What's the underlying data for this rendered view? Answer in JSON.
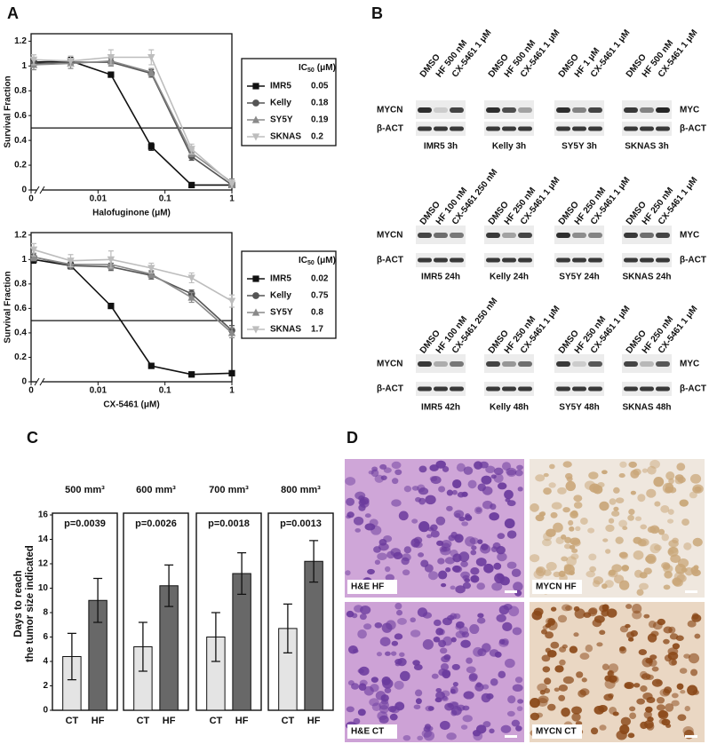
{
  "panel_labels": [
    "A",
    "B",
    "C",
    "D"
  ],
  "chart_data": [
    {
      "type": "line",
      "xlabel": "Halofuginone (μM)",
      "ylabel": "Survival Fraction",
      "x": [
        0,
        0.0039,
        0.0156,
        0.0625,
        0.25,
        1
      ],
      "xscale": "log",
      "axis_break": true,
      "xlim": [
        0.001,
        1
      ],
      "xticks": [
        0,
        0.01,
        0.1,
        1
      ],
      "ylim": [
        0,
        1.26
      ],
      "yticks": [
        0,
        0.2,
        0.4,
        0.6,
        0.8,
        1,
        1.2
      ],
      "hline": 0.5,
      "legend_title": "IC",
      "legend_title_sub": "50",
      "legend_title_unit": "(μM)",
      "legend_position": "right",
      "series": [
        {
          "name": "IMR5",
          "color": "#111111",
          "marker": "square",
          "values": [
            1.03,
            1.04,
            0.93,
            0.35,
            0.04,
            0.04
          ],
          "errors": [
            0.03,
            0.03,
            0.02,
            0.03,
            0.02,
            0.02
          ],
          "ic50": 0.05
        },
        {
          "name": "Kelly",
          "color": "#555555",
          "marker": "circle",
          "values": [
            1.02,
            1.03,
            1.03,
            0.94,
            0.27,
            0.04
          ],
          "errors": [
            0.03,
            0.03,
            0.03,
            0.03,
            0.03,
            0.02
          ],
          "ic50": 0.18
        },
        {
          "name": "SY5Y",
          "color": "#8a8a8a",
          "marker": "triangle-up",
          "values": [
            1.01,
            1.02,
            1.04,
            0.95,
            0.3,
            0.06
          ],
          "errors": [
            0.04,
            0.04,
            0.04,
            0.03,
            0.03,
            0.03
          ],
          "ic50": 0.19
        },
        {
          "name": "SKNAS",
          "color": "#bdbdbd",
          "marker": "triangle-down",
          "values": [
            1.05,
            1.04,
            1.07,
            1.07,
            0.33,
            0.05
          ],
          "errors": [
            0.04,
            0.04,
            0.06,
            0.06,
            0.04,
            0.03
          ],
          "ic50": 0.2
        }
      ]
    },
    {
      "type": "line",
      "xlabel": "CX-5461 (μM)",
      "ylabel": "Survival Fraction",
      "x": [
        0,
        0.0039,
        0.0156,
        0.0625,
        0.25,
        1
      ],
      "xscale": "log",
      "axis_break": true,
      "xlim": [
        0.001,
        1
      ],
      "xticks": [
        0,
        0.01,
        0.1,
        1
      ],
      "ylim": [
        0,
        1.22
      ],
      "yticks": [
        0,
        0.2,
        0.4,
        0.6,
        0.8,
        1,
        1.2
      ],
      "hline": 0.5,
      "legend_title": "IC",
      "legend_title_sub": "50",
      "legend_title_unit": "(μM)",
      "legend_position": "right",
      "series": [
        {
          "name": "IMR5",
          "color": "#111111",
          "marker": "square",
          "values": [
            1.0,
            0.95,
            0.62,
            0.13,
            0.06,
            0.07
          ],
          "errors": [
            0.03,
            0.02,
            0.02,
            0.02,
            0.02,
            0.02
          ],
          "ic50": 0.02
        },
        {
          "name": "Kelly",
          "color": "#555555",
          "marker": "circle",
          "values": [
            1.02,
            0.95,
            0.94,
            0.87,
            0.72,
            0.42
          ],
          "errors": [
            0.03,
            0.03,
            0.03,
            0.03,
            0.03,
            0.04
          ],
          "ic50": 0.75
        },
        {
          "name": "SY5Y",
          "color": "#8a8a8a",
          "marker": "triangle-up",
          "values": [
            1.02,
            0.96,
            0.96,
            0.88,
            0.69,
            0.4
          ],
          "errors": [
            0.03,
            0.04,
            0.04,
            0.03,
            0.04,
            0.04
          ],
          "ic50": 0.8
        },
        {
          "name": "SKNAS",
          "color": "#bdbdbd",
          "marker": "triangle-down",
          "values": [
            1.08,
            0.99,
            1.0,
            0.93,
            0.85,
            0.66
          ],
          "errors": [
            0.05,
            0.05,
            0.07,
            0.04,
            0.04,
            0.05
          ],
          "ic50": 1.7
        }
      ]
    },
    {
      "type": "bar",
      "title": "500 mm³",
      "annotation": "p=0.0039",
      "ylabel": [
        "Days to reach",
        "the tumor size indicated"
      ],
      "categories": [
        "CT",
        "HF"
      ],
      "values": [
        4.4,
        9.0
      ],
      "errors": [
        1.9,
        1.8
      ],
      "colors": [
        "#e4e4e4",
        "#686868"
      ],
      "ylim": [
        0,
        16
      ],
      "yticks": [
        0,
        2,
        4,
        6,
        8,
        10,
        12,
        14,
        16
      ]
    },
    {
      "type": "bar",
      "title": "600 mm³",
      "annotation": "p=0.0026",
      "categories": [
        "CT",
        "HF"
      ],
      "values": [
        5.2,
        10.2
      ],
      "errors": [
        2.0,
        1.7
      ],
      "colors": [
        "#e4e4e4",
        "#686868"
      ],
      "ylim": [
        0,
        16
      ]
    },
    {
      "type": "bar",
      "title": "700 mm³",
      "annotation": "p=0.0018",
      "categories": [
        "CT",
        "HF"
      ],
      "values": [
        6.0,
        11.2
      ],
      "errors": [
        2.0,
        1.7
      ],
      "colors": [
        "#e4e4e4",
        "#686868"
      ],
      "ylim": [
        0,
        16
      ]
    },
    {
      "type": "bar",
      "title": "800 mm³",
      "annotation": "p=0.0013",
      "categories": [
        "CT",
        "HF"
      ],
      "values": [
        6.7,
        12.2
      ],
      "errors": [
        2.0,
        1.7
      ],
      "colors": [
        "#e4e4e4",
        "#686868"
      ],
      "ylim": [
        0,
        16
      ]
    }
  ],
  "western_blots": {
    "rows": [
      {
        "left_labels": [
          "MYCN",
          "β-ACT"
        ],
        "right_labels": [
          "MYC",
          "β-ACT"
        ],
        "blots": [
          {
            "lanes": [
              "DMSO",
              "HF 500 nM",
              "CX-5461 1 μM"
            ],
            "caption": "IMR5 3h"
          },
          {
            "lanes": [
              "DMSO",
              "HF 500 nM",
              "CX-5461 1 μM"
            ],
            "caption": "Kelly 3h"
          },
          {
            "lanes": [
              "DMSO",
              "HF 1 μM",
              "CX-5461 1 μM"
            ],
            "caption": "SY5Y 3h"
          },
          {
            "lanes": [
              "DMSO",
              "HF 500 nM",
              "CX-5461 1 μM"
            ],
            "caption": "SKNAS 3h"
          }
        ]
      },
      {
        "left_labels": [
          "MYCN",
          "β-ACT"
        ],
        "right_labels": [
          "MYC",
          "β-ACT"
        ],
        "blots": [
          {
            "lanes": [
              "DMSO",
              "HF 100 nM",
              "CX-5461 250 nM"
            ],
            "caption": "IMR5 24h"
          },
          {
            "lanes": [
              "DMSO",
              "HF 250 nM",
              "CX-5461 1 μM"
            ],
            "caption": "Kelly 24h"
          },
          {
            "lanes": [
              "DMSO",
              "HF 250 nM",
              "CX-5461 1 μM"
            ],
            "caption": "SY5Y 24h"
          },
          {
            "lanes": [
              "DMSO",
              "HF 250 nM",
              "CX-5461 1 μM"
            ],
            "caption": "SKNAS 24h"
          }
        ]
      },
      {
        "left_labels": [
          "MYCN",
          "β-ACT"
        ],
        "right_labels": [
          "MYC",
          "β-ACT"
        ],
        "blots": [
          {
            "lanes": [
              "DMSO",
              "HF 100 nM",
              "CX-5461 250 nM"
            ],
            "caption": "IMR5 42h"
          },
          {
            "lanes": [
              "DMSO",
              "HF 250 nM",
              "CX-5461 1 μM"
            ],
            "caption": "Kelly 48h"
          },
          {
            "lanes": [
              "DMSO",
              "HF 250 nM",
              "CX-5461 1 μM"
            ],
            "caption": "SY5Y 48h"
          },
          {
            "lanes": [
              "DMSO",
              "HF 250 nM",
              "CX-5461 1 μM"
            ],
            "caption": "SKNAS 48h"
          }
        ]
      }
    ]
  },
  "histology": [
    {
      "label": "H&E HF",
      "background": "#cfa6d8",
      "nuclei": "#6a3a9c"
    },
    {
      "label": "MYCN HF",
      "background": "#efe7de",
      "nuclei": "#c9a678"
    },
    {
      "label": "H&E CT",
      "background": "#cda2d6",
      "nuclei": "#6b3b9e"
    },
    {
      "label": "MYCN CT",
      "background": "#ead7c3",
      "nuclei": "#8a4818"
    }
  ]
}
